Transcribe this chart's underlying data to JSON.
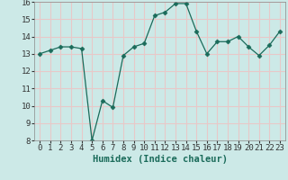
{
  "x": [
    0,
    1,
    2,
    3,
    4,
    5,
    6,
    7,
    8,
    9,
    10,
    11,
    12,
    13,
    14,
    15,
    16,
    17,
    18,
    19,
    20,
    21,
    22,
    23
  ],
  "y": [
    13.0,
    13.2,
    13.4,
    13.4,
    13.3,
    8.0,
    10.3,
    9.9,
    12.9,
    13.4,
    13.6,
    15.2,
    15.4,
    15.9,
    15.9,
    14.3,
    13.0,
    13.7,
    13.7,
    14.0,
    13.4,
    12.9,
    13.5,
    14.3
  ],
  "xlabel": "Humidex (Indice chaleur)",
  "ylim": [
    8,
    16
  ],
  "xlim": [
    -0.5,
    23.5
  ],
  "yticks": [
    8,
    9,
    10,
    11,
    12,
    13,
    14,
    15,
    16
  ],
  "xticks": [
    0,
    1,
    2,
    3,
    4,
    5,
    6,
    7,
    8,
    9,
    10,
    11,
    12,
    13,
    14,
    15,
    16,
    17,
    18,
    19,
    20,
    21,
    22,
    23
  ],
  "line_color": "#1a6b5a",
  "marker": "D",
  "marker_size": 2.5,
  "bg_color": "#cce9e7",
  "grid_color": "#e8c8c8",
  "tick_fontsize": 6.5,
  "label_fontsize": 7.5
}
